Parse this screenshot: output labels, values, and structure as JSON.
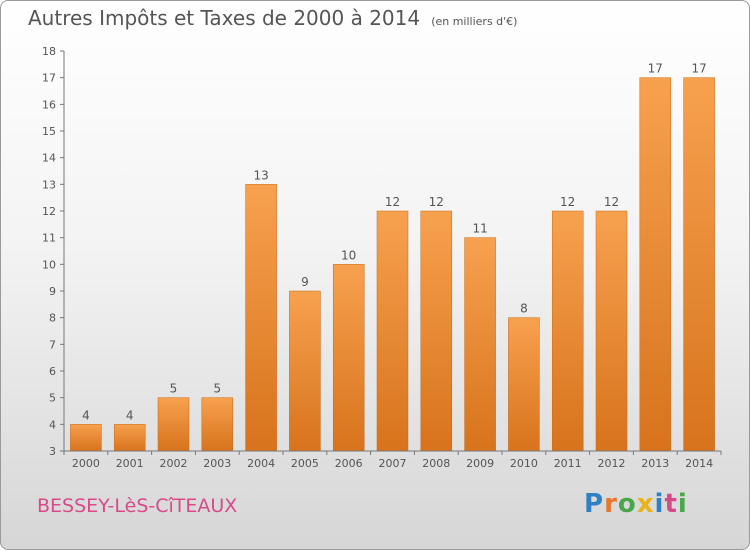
{
  "title": "Autres Impôts et Taxes de 2000 à 2014",
  "subtitle": "(en milliers d'€)",
  "city": "BESSEY-LèS-CîTEAUX",
  "logo": {
    "letters": [
      "P",
      "r",
      "o",
      "x",
      "i",
      "t",
      "i"
    ],
    "colors": [
      "#2f7fc4",
      "#e8752a",
      "#4aa64a",
      "#e8b21a",
      "#2f7fc4",
      "#d64a8a",
      "#4aa64a"
    ]
  },
  "colors": {
    "bar_light": "#f7a14f",
    "bar_dark": "#d8731c",
    "axis": "#777777",
    "grid": "#dddddd",
    "text": "#555555",
    "city": "#d94a8a"
  },
  "chart_data": {
    "type": "bar",
    "categories": [
      "2000",
      "2001",
      "2002",
      "2003",
      "2004",
      "2005",
      "2006",
      "2007",
      "2008",
      "2009",
      "2010",
      "2011",
      "2012",
      "2013",
      "2014"
    ],
    "values": [
      4,
      4,
      5,
      5,
      13,
      9,
      10,
      12,
      12,
      11,
      8,
      12,
      12,
      17,
      17
    ],
    "ylim": [
      3,
      18
    ],
    "yticks": [
      3,
      4,
      5,
      6,
      7,
      8,
      9,
      10,
      11,
      12,
      13,
      14,
      15,
      16,
      17,
      18
    ],
    "data_labels": [
      "4",
      "4",
      "5",
      "5",
      "13",
      "9",
      "10",
      "12",
      "12",
      "11",
      "8",
      "12",
      "12",
      "17",
      "17"
    ],
    "grid": false
  }
}
